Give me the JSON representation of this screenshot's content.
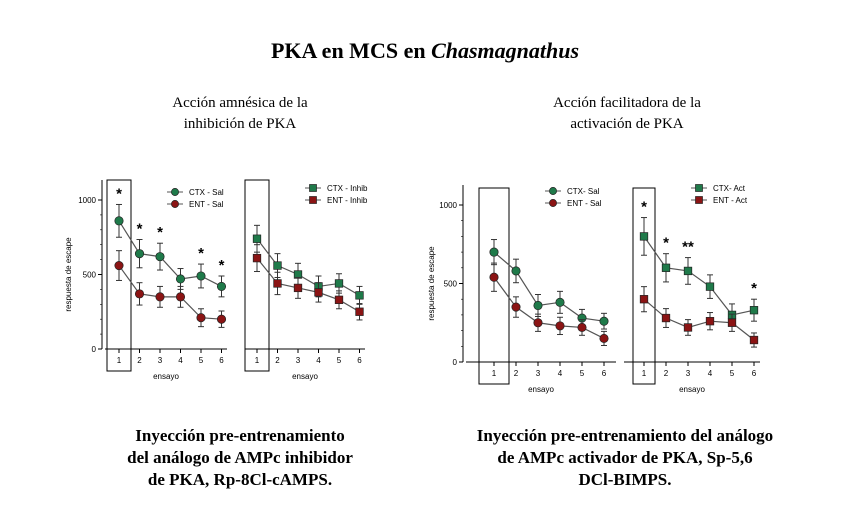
{
  "header": {
    "title_main": "PKA en MCS en ",
    "title_species": "Chasmagnathus"
  },
  "panels": [
    {
      "subtitle_lines": [
        "Acción amnésica de la",
        "inhibición de PKA"
      ],
      "caption_lines": [
        "Inyección pre-entrenamiento",
        "del análogo de AMPc inhibidor",
        "de PKA, Rp-8Cl-cAMPS."
      ]
    },
    {
      "subtitle_lines": [
        "Acción facilitadora de la",
        "activación de PKA"
      ],
      "caption_lines": [
        "Inyección pre-entrenamiento del análogo",
        "de AMPc activador de PKA, Sp-5,6",
        "DCl-BIMPS."
      ]
    }
  ],
  "colors": {
    "ctx": "#1f7a4a",
    "ent": "#8b1414"
  },
  "chart_data": [
    {
      "type": "line",
      "ylabel": "respuesta de escape",
      "xlabel": "ensayo",
      "ylim": [
        0,
        1000
      ],
      "yticks": [
        0,
        500,
        1000
      ],
      "yticklabels": [
        "0",
        "500",
        "1000"
      ],
      "groups": [
        {
          "x": [
            1,
            2,
            3,
            4,
            5,
            6
          ],
          "series": [
            {
              "name": "CTX - Sal",
              "color": "#1f7a4a",
              "marker": "circle",
              "values": [
                860,
                640,
                620,
                470,
                490,
                420
              ],
              "err": [
                110,
                95,
                90,
                70,
                80,
                70
              ]
            },
            {
              "name": "ENT - Sal",
              "color": "#8b1414",
              "marker": "circle",
              "values": [
                560,
                370,
                350,
                350,
                210,
                200
              ],
              "err": [
                100,
                75,
                70,
                70,
                60,
                55
              ]
            }
          ],
          "stars": [
            "*",
            "*",
            "*",
            "",
            "*",
            "*"
          ],
          "boxed_trial": 1
        },
        {
          "x": [
            1,
            2,
            3,
            4,
            5,
            6
          ],
          "series": [
            {
              "name": "CTX - Inhib",
              "color": "#1f7a4a",
              "marker": "square",
              "values": [
                740,
                560,
                500,
                420,
                440,
                360
              ],
              "err": [
                90,
                80,
                75,
                70,
                65,
                60
              ]
            },
            {
              "name": "ENT - Inhib",
              "color": "#8b1414",
              "marker": "square",
              "values": [
                610,
                440,
                410,
                380,
                330,
                250
              ],
              "err": [
                90,
                75,
                70,
                65,
                60,
                55
              ]
            }
          ],
          "stars": [
            "",
            "",
            "",
            "",
            "",
            ""
          ],
          "boxed_trial": 1
        }
      ]
    },
    {
      "type": "line",
      "ylabel": "respuesta de escape",
      "xlabel": "ensayo",
      "ylim": [
        0,
        1000
      ],
      "yticks": [
        0,
        500,
        1000
      ],
      "yticklabels": [
        "0",
        "500",
        "1000"
      ],
      "groups": [
        {
          "x": [
            1,
            2,
            3,
            4,
            5,
            6
          ],
          "series": [
            {
              "name": "CTX- Sal",
              "color": "#1f7a4a",
              "marker": "circle",
              "values": [
                700,
                580,
                360,
                380,
                280,
                260
              ],
              "err": [
                80,
                75,
                70,
                70,
                55,
                50
              ]
            },
            {
              "name": "ENT - Sal",
              "color": "#8b1414",
              "marker": "circle",
              "values": [
                540,
                350,
                250,
                230,
                220,
                150
              ],
              "err": [
                90,
                65,
                55,
                55,
                50,
                45
              ]
            }
          ],
          "stars": [
            "",
            "",
            "",
            "",
            "",
            ""
          ],
          "boxed_trial": 1
        },
        {
          "x": [
            1,
            2,
            3,
            4,
            5,
            6
          ],
          "series": [
            {
              "name": "CTX- Act",
              "color": "#1f7a4a",
              "marker": "square",
              "values": [
                800,
                600,
                580,
                480,
                300,
                330
              ],
              "err": [
                120,
                90,
                85,
                75,
                70,
                70
              ]
            },
            {
              "name": "ENT - Act",
              "color": "#8b1414",
              "marker": "square",
              "values": [
                400,
                280,
                220,
                260,
                250,
                140
              ],
              "err": [
                80,
                60,
                50,
                55,
                55,
                45
              ]
            }
          ],
          "stars": [
            "*",
            "*",
            "**",
            "",
            "",
            "*"
          ],
          "boxed_trial": 1
        }
      ]
    }
  ]
}
